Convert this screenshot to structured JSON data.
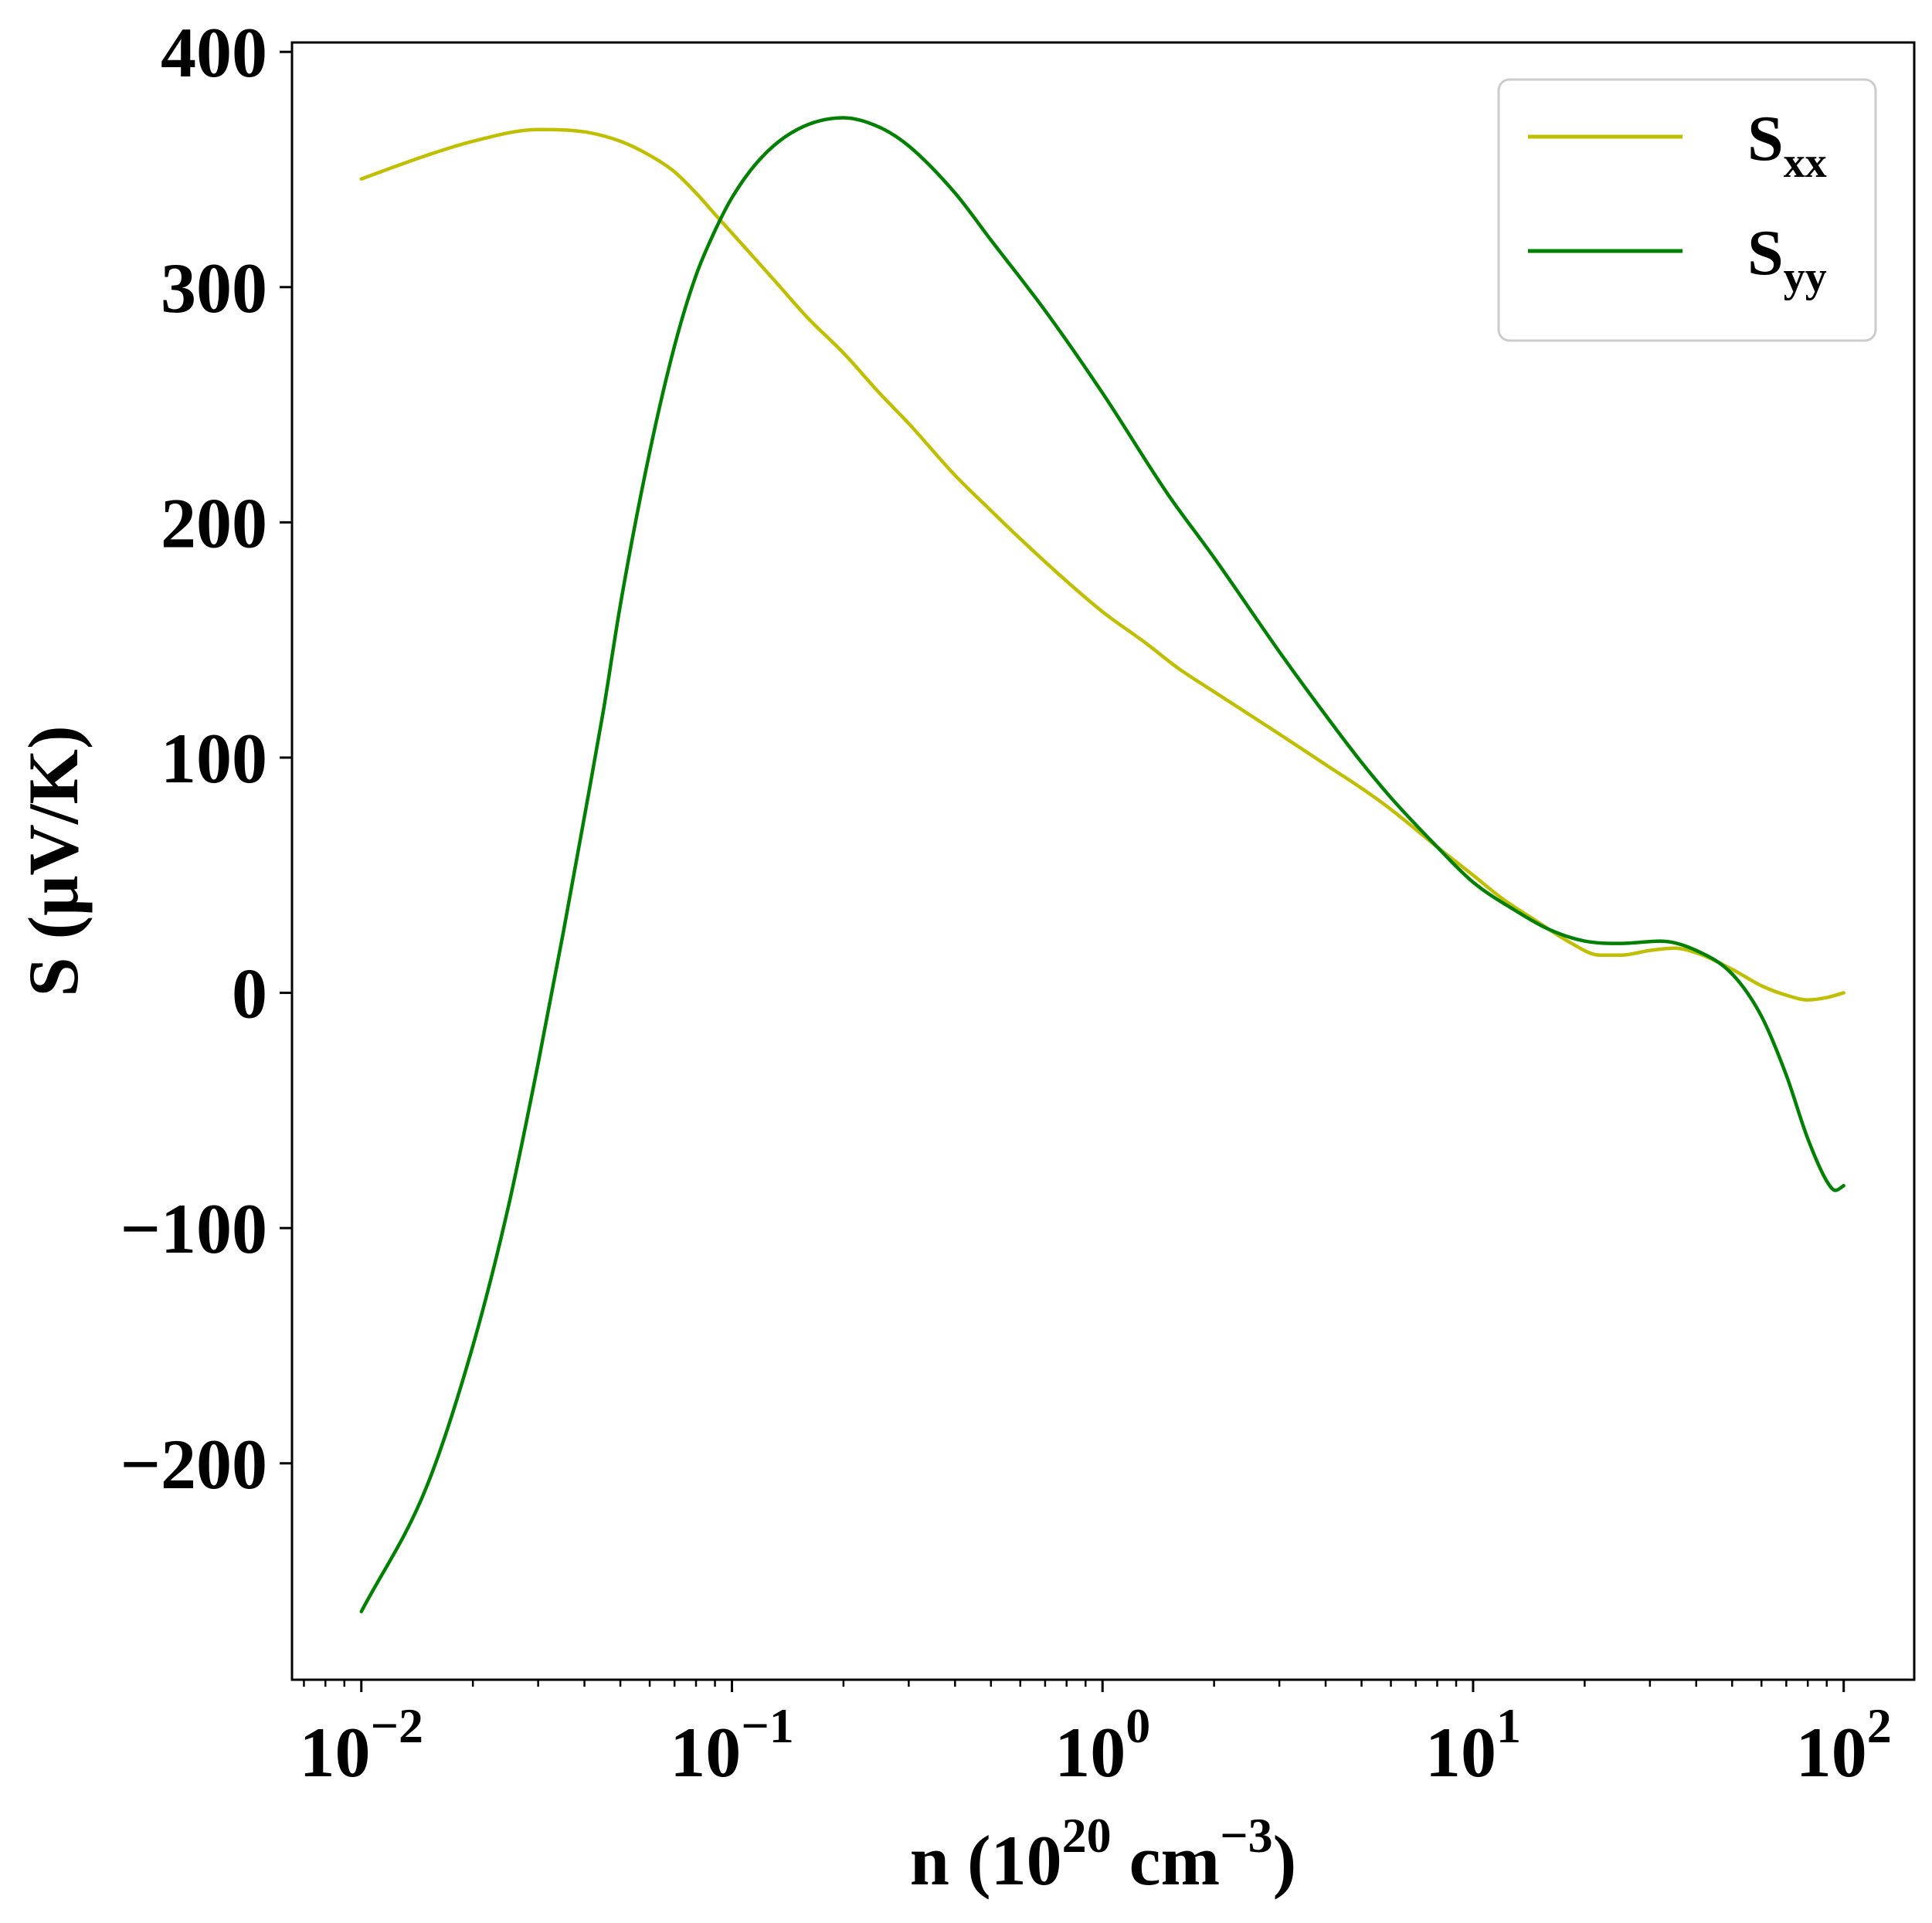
{
  "chart_data": {
    "type": "line",
    "xscale": "log",
    "xlabel": {
      "base": "n (10",
      "sup1": "20",
      "mid": " cm",
      "sup2": "−3",
      "end": ")"
    },
    "ylabel": "S (μV/K)",
    "xlim": [
      0.0065,
      155
    ],
    "ylim": [
      -292,
      404
    ],
    "x_ticks": [
      {
        "value": 0.01,
        "base": "10",
        "exp": "−2"
      },
      {
        "value": 0.1,
        "base": "10",
        "exp": "−1"
      },
      {
        "value": 1,
        "base": "10",
        "exp": "0"
      },
      {
        "value": 10,
        "base": "10",
        "exp": "1"
      },
      {
        "value": 100,
        "base": "10",
        "exp": "2"
      }
    ],
    "y_ticks": [
      {
        "value": -200,
        "label": "−200"
      },
      {
        "value": -100,
        "label": "−100"
      },
      {
        "value": 0,
        "label": "0"
      },
      {
        "value": 100,
        "label": "100"
      },
      {
        "value": 200,
        "label": "200"
      },
      {
        "value": 300,
        "label": "300"
      },
      {
        "value": 400,
        "label": "400"
      }
    ],
    "grid": false,
    "legend_position": "top-right",
    "series": [
      {
        "name": "S",
        "sub": "xx",
        "color": "#bfbf00",
        "points": [
          [
            0.01,
            346
          ],
          [
            0.015,
            356
          ],
          [
            0.02,
            362
          ],
          [
            0.03,
            367
          ],
          [
            0.04,
            366
          ],
          [
            0.05,
            362
          ],
          [
            0.06,
            356
          ],
          [
            0.07,
            349
          ],
          [
            0.08,
            340
          ],
          [
            0.09,
            331
          ],
          [
            0.1,
            323
          ],
          [
            0.13,
            303
          ],
          [
            0.16,
            287
          ],
          [
            0.2,
            272
          ],
          [
            0.25,
            255
          ],
          [
            0.3,
            242
          ],
          [
            0.4,
            220
          ],
          [
            0.5,
            205
          ],
          [
            0.6,
            193
          ],
          [
            0.8,
            175
          ],
          [
            1,
            162
          ],
          [
            1.3,
            149
          ],
          [
            1.6,
            138
          ],
          [
            2,
            128
          ],
          [
            3,
            110
          ],
          [
            4,
            97
          ],
          [
            5,
            87
          ],
          [
            6,
            78
          ],
          [
            8,
            62
          ],
          [
            10,
            50
          ],
          [
            12,
            40
          ],
          [
            15,
            30
          ],
          [
            18,
            22
          ],
          [
            22,
            16
          ],
          [
            25,
            16
          ],
          [
            30,
            18
          ],
          [
            35,
            19
          ],
          [
            40,
            17
          ],
          [
            50,
            10
          ],
          [
            60,
            3
          ],
          [
            70,
            -1
          ],
          [
            80,
            -3
          ],
          [
            90,
            -2
          ],
          [
            100,
            0
          ]
        ]
      },
      {
        "name": "S",
        "sub": "yy",
        "color": "#008000",
        "points": [
          [
            0.01,
            -263
          ],
          [
            0.015,
            -210
          ],
          [
            0.02,
            -150
          ],
          [
            0.025,
            -90
          ],
          [
            0.03,
            -30
          ],
          [
            0.035,
            25
          ],
          [
            0.04,
            75
          ],
          [
            0.045,
            120
          ],
          [
            0.05,
            165
          ],
          [
            0.06,
            230
          ],
          [
            0.07,
            275
          ],
          [
            0.08,
            305
          ],
          [
            0.09,
            324
          ],
          [
            0.1,
            338
          ],
          [
            0.12,
            355
          ],
          [
            0.15,
            367
          ],
          [
            0.2,
            372
          ],
          [
            0.25,
            368
          ],
          [
            0.3,
            360
          ],
          [
            0.4,
            340
          ],
          [
            0.5,
            320
          ],
          [
            0.7,
            290
          ],
          [
            1,
            255
          ],
          [
            1.5,
            212
          ],
          [
            2,
            185
          ],
          [
            3,
            145
          ],
          [
            4,
            118
          ],
          [
            5,
            98
          ],
          [
            6,
            83
          ],
          [
            8,
            62
          ],
          [
            10,
            47
          ],
          [
            13,
            35
          ],
          [
            16,
            27
          ],
          [
            20,
            22
          ],
          [
            25,
            21
          ],
          [
            32,
            22
          ],
          [
            40,
            18
          ],
          [
            50,
            8
          ],
          [
            60,
            -10
          ],
          [
            70,
            -35
          ],
          [
            80,
            -62
          ],
          [
            90,
            -80
          ],
          [
            95,
            -84
          ],
          [
            100,
            -82
          ]
        ]
      }
    ]
  }
}
